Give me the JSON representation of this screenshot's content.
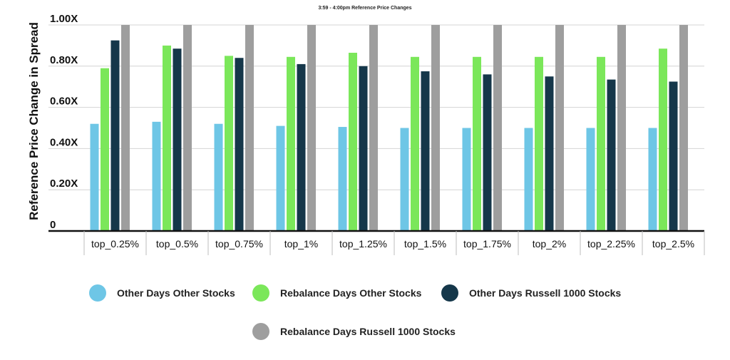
{
  "chart_data": {
    "type": "bar",
    "title": "3:59 - 4:00pm Reference Price Changes",
    "xlabel": "",
    "ylabel": "Reference Price Change in Spread",
    "ylim": [
      0,
      1.0
    ],
    "yticks": [
      {
        "value": 0,
        "label": "0"
      },
      {
        "value": 0.2,
        "label": "0.20X"
      },
      {
        "value": 0.4,
        "label": "0.40X"
      },
      {
        "value": 0.6,
        "label": "0.60X"
      },
      {
        "value": 0.8,
        "label": "0.80X"
      },
      {
        "value": 1.0,
        "label": "1.00X"
      }
    ],
    "grid": true,
    "legend_position": "bottom",
    "categories": [
      "top_0.25%",
      "top_0.5%",
      "top_0.75%",
      "top_1%",
      "top_1.25%",
      "top_1.5%",
      "top_1.75%",
      "top_2%",
      "top_2.25%",
      "top_2.5%"
    ],
    "series": [
      {
        "name": "Other Days Other Stocks",
        "color": "#6EC6E6",
        "values": [
          0.52,
          0.53,
          0.52,
          0.51,
          0.505,
          0.5,
          0.5,
          0.5,
          0.5,
          0.5
        ]
      },
      {
        "name": "Rebalance Days Other Stocks",
        "color": "#7BE75A",
        "values": [
          0.79,
          0.9,
          0.85,
          0.845,
          0.865,
          0.845,
          0.845,
          0.845,
          0.845,
          0.885
        ]
      },
      {
        "name": "Other Days Russell 1000 Stocks",
        "color": "#15374A",
        "values": [
          0.925,
          0.885,
          0.84,
          0.81,
          0.8,
          0.775,
          0.76,
          0.75,
          0.735,
          0.725
        ]
      },
      {
        "name": "Rebalance Days Russell 1000 Stocks",
        "color": "#9E9E9E",
        "values": [
          1.0,
          1.0,
          1.0,
          1.0,
          1.0,
          1.0,
          1.0,
          1.0,
          1.0,
          1.0
        ]
      }
    ]
  }
}
